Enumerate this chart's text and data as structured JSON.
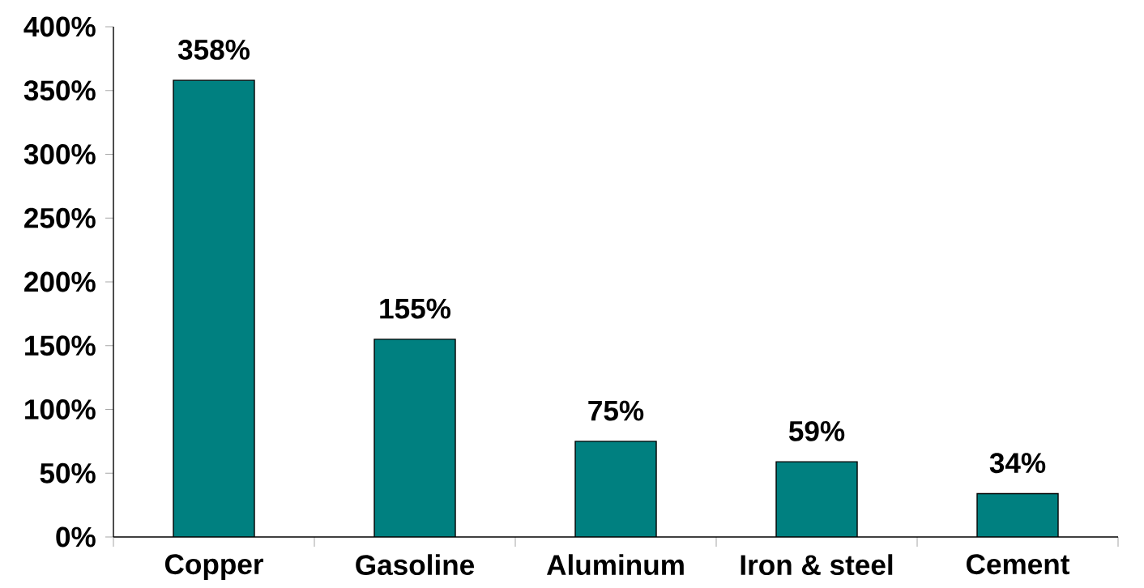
{
  "chart_data": {
    "type": "bar",
    "categories": [
      "Copper",
      "Gasoline",
      "Aluminum",
      "Iron & steel",
      "Cement"
    ],
    "values": [
      358,
      155,
      75,
      59,
      34
    ],
    "value_labels": [
      "358%",
      "155%",
      "75%",
      "59%",
      "34%"
    ],
    "color": "#008080",
    "ylim": [
      0,
      400
    ],
    "yticks": [
      {
        "value": 0,
        "label": "0%"
      },
      {
        "value": 50,
        "label": "50%"
      },
      {
        "value": 100,
        "label": "100%"
      },
      {
        "value": 150,
        "label": "150%"
      },
      {
        "value": 200,
        "label": "200%"
      },
      {
        "value": 250,
        "label": "250%"
      },
      {
        "value": 300,
        "label": "300%"
      },
      {
        "value": 350,
        "label": "350%"
      },
      {
        "value": 400,
        "label": "400%"
      }
    ],
    "grid": false
  }
}
